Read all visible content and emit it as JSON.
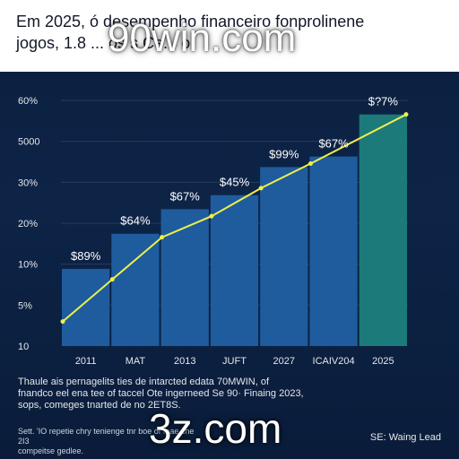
{
  "colors": {
    "background": "#0c1f3e",
    "bar": "#1f5c9e",
    "bar_highlight": "#1c7a7a",
    "line": "#eef04a",
    "grid": "#9fb3cc"
  },
  "caption": "Thaule ais pernagelits ties de intarcted edata 70MWIN, of\nfnandco eel ena tee of taccel Ote ingerneed Se 90· Finaing 2023,\nsops, comeges tnarted de no 2ET8S.",
  "footnote": "Sett. 'IO repetie chry tenienge tnr boe of fnae che 2I3\ncompeitse gedlee.",
  "source": "SE: Waing Lead",
  "watermarks": {
    "top": "90win.com",
    "bottom": "3z.com"
  },
  "chart_data": {
    "type": "bar",
    "title": "Em 2025, ó desempenho financeiro fonprolinene\njogos, 1.8 ... os s Ce... o",
    "xlabel": "",
    "ylabel": "",
    "categories": [
      "2011",
      "MAT",
      "2013",
      "JUFT",
      "2027",
      "ICAIV204",
      "2025"
    ],
    "y_tick_labels": [
      "10",
      "5%",
      "10%",
      "20%",
      "30%",
      "5000",
      "60%"
    ],
    "values": [
      2.2,
      3.2,
      3.9,
      4.3,
      5.1,
      5.4,
      6.6
    ],
    "line_values": [
      0.7,
      1.9,
      3.1,
      3.7,
      4.5,
      5.2,
      6.6
    ],
    "data_labels": [
      "$89%",
      "$64%",
      "$67%",
      "$45%",
      "$99%",
      "$67%",
      "$?7%"
    ],
    "highlight_index": 6,
    "ylim": [
      0,
      7
    ],
    "grid": true,
    "legend": "none"
  }
}
